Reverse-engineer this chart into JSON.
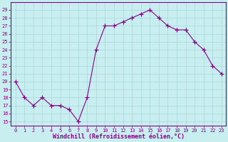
{
  "x": [
    0,
    1,
    2,
    3,
    4,
    5,
    6,
    7,
    8,
    9,
    10,
    11,
    12,
    13,
    14,
    15,
    16,
    17,
    18,
    19,
    20,
    21,
    22,
    23
  ],
  "y": [
    20,
    18,
    17,
    18,
    17,
    17,
    16.5,
    15,
    18,
    24,
    27,
    27,
    27.5,
    28,
    28.5,
    29,
    28,
    27,
    26.5,
    26.5,
    25,
    24,
    22,
    21
  ],
  "line_color": "#880088",
  "marker": "+",
  "bg_color": "#c8eef0",
  "grid_color": "#a8d8da",
  "xlabel": "Windchill (Refroidissement éolien,°C)",
  "xlabel_color": "#880088",
  "ylabel_ticks": [
    15,
    16,
    17,
    18,
    19,
    20,
    21,
    22,
    23,
    24,
    25,
    26,
    27,
    28,
    29
  ],
  "xtick_labels": [
    "0",
    "1",
    "2",
    "3",
    "4",
    "5",
    "6",
    "7",
    "8",
    "9",
    "10",
    "11",
    "12",
    "13",
    "14",
    "15",
    "16",
    "17",
    "18",
    "19",
    "20",
    "21",
    "22",
    "23"
  ],
  "xlim": [
    -0.5,
    23.5
  ],
  "ylim": [
    14.5,
    30.0
  ],
  "tick_color": "#880088",
  "spine_color": "#880088",
  "font_color": "#880088",
  "tick_fontsize": 5,
  "xlabel_fontsize": 6
}
